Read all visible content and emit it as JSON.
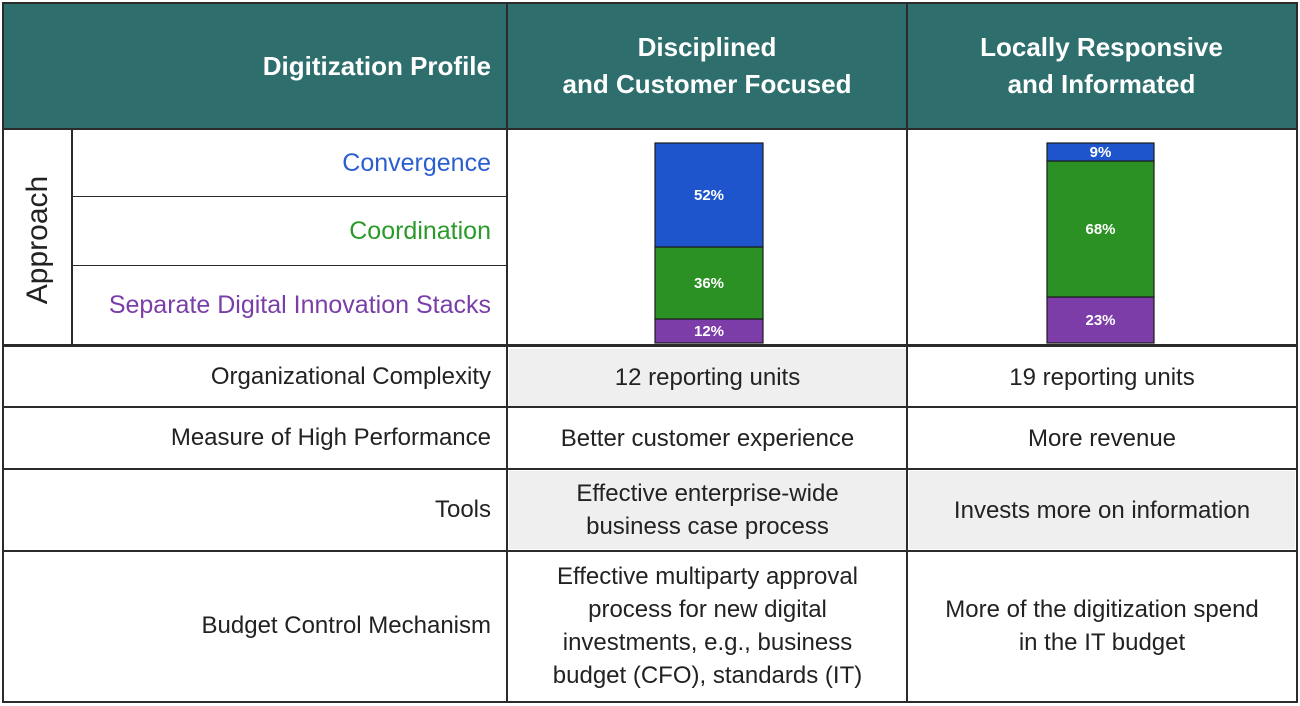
{
  "header": {
    "profile_label": "Digitization Profile",
    "col1": "Disciplined\nand Customer Focused",
    "col2": "Locally Responsive\nand Informated"
  },
  "approach": {
    "label": "Approach",
    "rows": [
      {
        "name": "Convergence",
        "color": "#2b5fd0"
      },
      {
        "name": "Coordination",
        "color": "#2a9a2a"
      },
      {
        "name": "Separate Digital Innovation Stacks",
        "color": "#7a3ea8"
      }
    ]
  },
  "chart_data": {
    "type": "bar",
    "stacked": true,
    "categories": [
      "Disciplined and Customer Focused",
      "Locally Responsive and Informated"
    ],
    "series": [
      {
        "name": "Separate Digital Innovation Stacks",
        "values": [
          12,
          23
        ],
        "labels": [
          "12%",
          "23%"
        ],
        "color": "#7d3da8"
      },
      {
        "name": "Coordination",
        "values": [
          36,
          68
        ],
        "labels": [
          "36%",
          "68%"
        ],
        "color": "#2b9124"
      },
      {
        "name": "Convergence",
        "values": [
          52,
          9
        ],
        "labels": [
          "52%",
          "9%"
        ],
        "color": "#1f55cc"
      }
    ],
    "ylim": [
      0,
      100
    ]
  },
  "rows": [
    {
      "label": "Organizational Complexity",
      "col1": "12 reporting units",
      "col2": "19 reporting units"
    },
    {
      "label": "Measure of High Performance",
      "col1": "Better customer experience",
      "col2": "More revenue"
    },
    {
      "label": "Tools",
      "col1": "Effective enterprise-wide\nbusiness case process",
      "col2": "Invests more on information"
    },
    {
      "label": "Budget Control Mechanism",
      "col1": "Effective multiparty approval\nprocess for new digital\ninvestments, e.g., business\nbudget (CFO), standards (IT)",
      "col2": "More of the digitization spend\nin the IT budget"
    }
  ]
}
